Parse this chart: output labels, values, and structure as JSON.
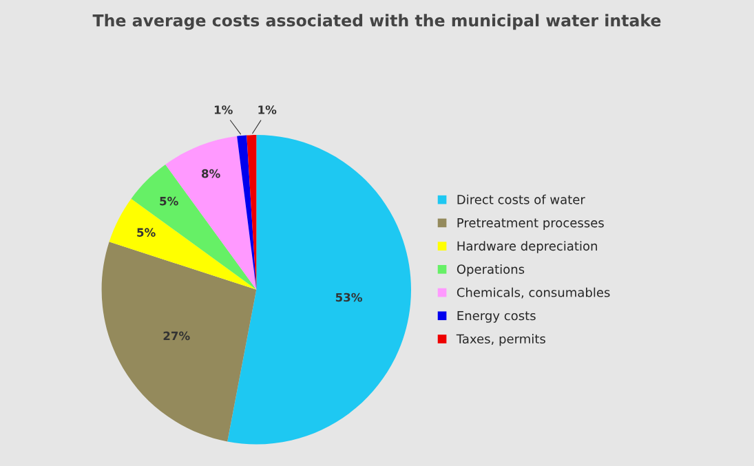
{
  "chart_data": {
    "type": "pie",
    "title": "The average costs associated with the municipal water intake",
    "categories": [
      "Direct costs of water",
      "Pretreatment processes",
      "Hardware depreciation",
      "Operations",
      "Chemicals, consumables",
      "Energy costs",
      "Taxes, permits"
    ],
    "values": [
      53,
      27,
      5,
      5,
      8,
      1,
      1
    ],
    "colors": [
      "#1ec8f2",
      "#948a5c",
      "#ffff00",
      "#66f066",
      "#ff99ff",
      "#0000ee",
      "#ee0000"
    ],
    "value_labels": [
      "53%",
      "27%",
      "5%",
      "5%",
      "8%",
      "1%",
      "1%"
    ],
    "legend": "right"
  }
}
